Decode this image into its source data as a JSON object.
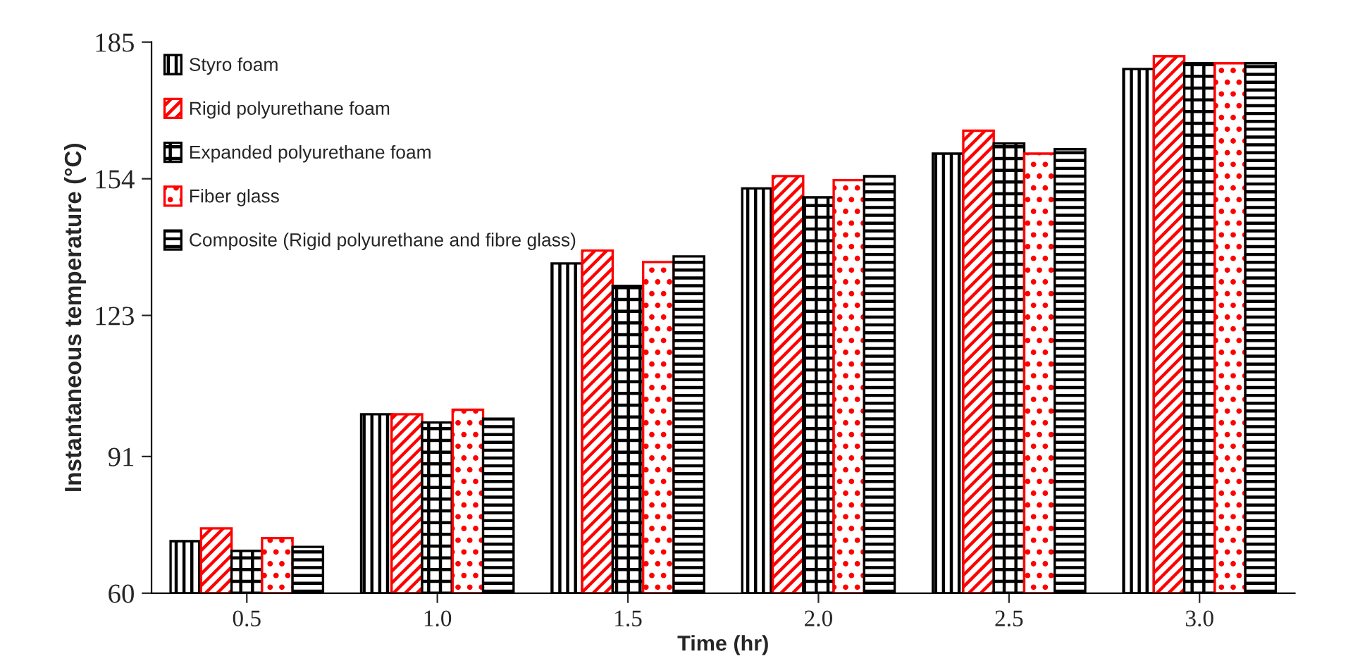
{
  "chart_data": {
    "type": "bar",
    "xlabel": "Time (hr)",
    "ylabel": "Instantaneous temperature (°C)",
    "categories": [
      "0.5",
      "1.0",
      "1.5",
      "2.0",
      "2.5",
      "3.0"
    ],
    "series": [
      {
        "name": "Styro foam",
        "color": "#000000",
        "values": [
          71.8,
          100.6,
          134.8,
          151.8,
          159.7,
          178.9
        ]
      },
      {
        "name": "Rigid polyurethane foam",
        "color": "#ff0000",
        "values": [
          74.7,
          100.6,
          137.7,
          154.6,
          164.9,
          181.8
        ]
      },
      {
        "name": "Expanded polyurethane foam",
        "color": "#000000",
        "values": [
          69.6,
          98.7,
          129.7,
          149.8,
          162.0,
          180.2
        ]
      },
      {
        "name": "Fiber glass",
        "color": "#ff0000",
        "values": [
          72.5,
          101.6,
          135.1,
          153.7,
          159.7,
          180.2
        ]
      },
      {
        "name": "Composite (Rigid polyurethane and fibre glass)",
        "color": "#000000",
        "values": [
          70.5,
          99.6,
          136.4,
          154.6,
          160.7,
          180.2
        ]
      }
    ],
    "ylim": [
      60,
      185
    ],
    "yticks": [
      60,
      91,
      123,
      154,
      185
    ],
    "grid": false,
    "legend": "top left"
  }
}
